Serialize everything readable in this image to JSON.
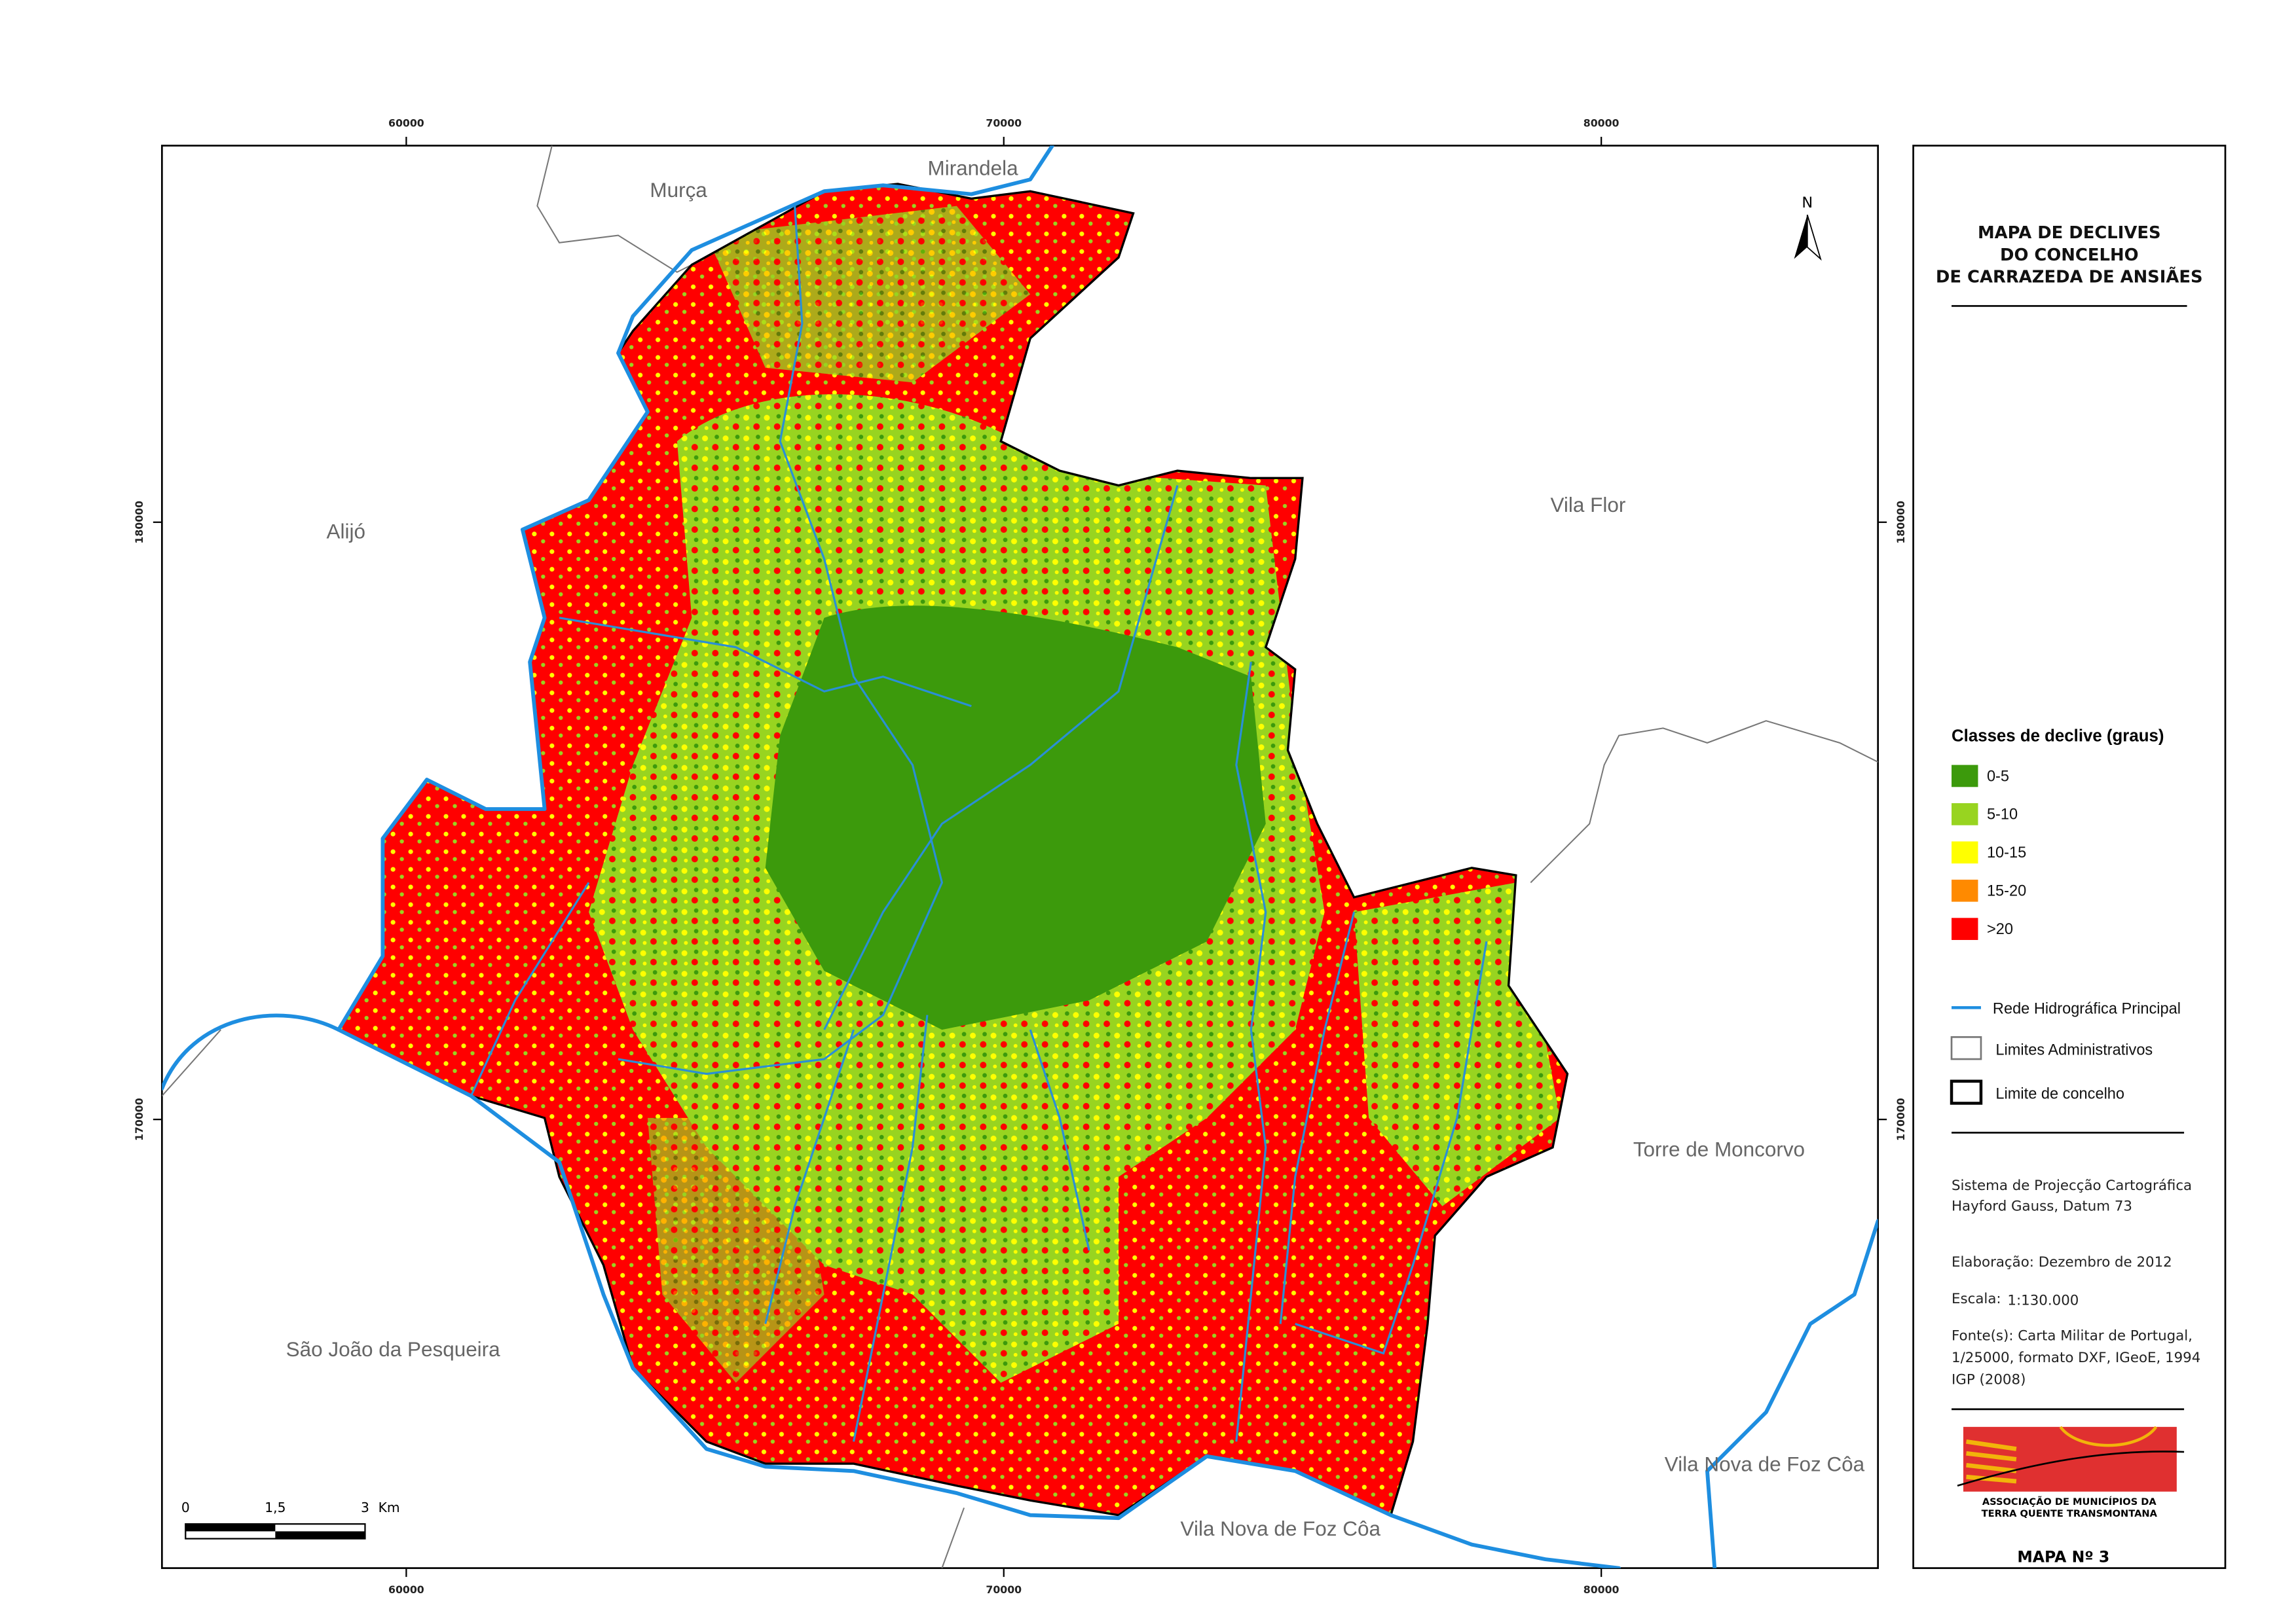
{
  "map": {
    "x_ticks": [
      "60000",
      "70000",
      "80000"
    ],
    "y_ticks": [
      "180000",
      "170000"
    ],
    "places": [
      "Murça",
      "Mirandela",
      "Alijó",
      "Vila Flor",
      "Torre de Moncorvo",
      "São João da Pesqueira",
      "Vila Nova de Foz Côa",
      "Vila Nova de Foz Côa"
    ],
    "north": "N",
    "scale_bar": [
      "0",
      "1,5",
      "3",
      "Km"
    ]
  },
  "panel": {
    "title": [
      "MAPA DE DECLIVES",
      "DO CONCELHO",
      "DE CARRAZEDA DE ANSIÃES"
    ],
    "legend": {
      "title": "Classes de declive (graus)",
      "classes": [
        {
          "label": "0-5",
          "color": "#3c9a0c"
        },
        {
          "label": "5-10",
          "color": "#98d420"
        },
        {
          "label": "10-15",
          "color": "#ffff00"
        },
        {
          "label": "15-20",
          "color": "#ff8a00"
        },
        {
          "label": ">20",
          "color": "#ff0000"
        }
      ],
      "lines": [
        "Rede Hidrográfica Principal",
        "Limites Administrativos",
        "Limite de concelho"
      ]
    },
    "notes": [
      "Sistema de Projecção Cartográfica",
      "Hayford Gauss, Datum 73",
      "Elaboração: Dezembro de 2012",
      "Escala:",
      "1:130.000",
      "Fonte(s): Carta Militar de Portugal,",
      "1/25000, formato DXF, IGeoE, 1994",
      "IGP (2008)"
    ],
    "logo": [
      "ASSOCIAÇÃO DE MUNICÍPIOS DA",
      "TERRA QUENTE TRANSMONTANA"
    ],
    "map_number": "MAPA Nº 3"
  }
}
